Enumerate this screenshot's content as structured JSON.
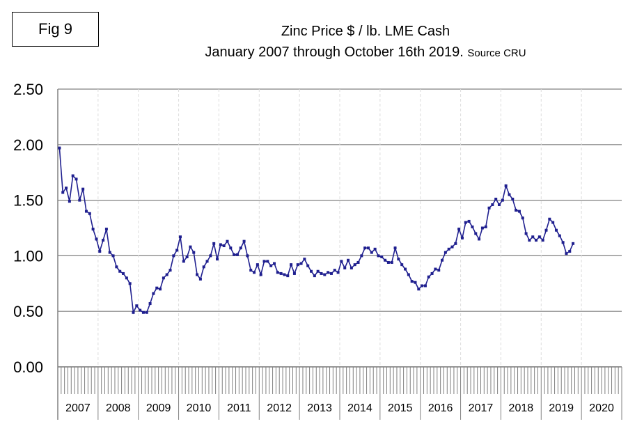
{
  "figure_label": "Fig 9",
  "chart_data": {
    "type": "line",
    "title": "Zinc Price $ / lb. LME Cash",
    "subtitle": "January 2007 through October 16th 2019.",
    "source_note": "Source CRU",
    "xlabel": "",
    "ylabel": "",
    "ylim": [
      0,
      2.5
    ],
    "yticks": [
      "0.00",
      "0.50",
      "1.00",
      "1.50",
      "2.00",
      "2.50"
    ],
    "x_year_labels": [
      "2007",
      "2008",
      "2009",
      "2010",
      "2011",
      "2012",
      "2013",
      "2014",
      "2015",
      "2016",
      "2017",
      "2018",
      "2019",
      "2020"
    ],
    "x_start": "2007-01",
    "x_frequency": "monthly",
    "grid": true,
    "series": [
      {
        "name": "Zinc Price",
        "color": "#1f1f8f",
        "values": [
          1.97,
          1.57,
          1.61,
          1.49,
          1.72,
          1.69,
          1.5,
          1.6,
          1.4,
          1.38,
          1.24,
          1.15,
          1.04,
          1.14,
          1.24,
          1.03,
          1.0,
          0.9,
          0.86,
          0.84,
          0.8,
          0.75,
          0.49,
          0.55,
          0.51,
          0.49,
          0.49,
          0.57,
          0.66,
          0.71,
          0.7,
          0.8,
          0.83,
          0.87,
          1.0,
          1.05,
          1.17,
          0.95,
          0.99,
          1.08,
          1.03,
          0.83,
          0.79,
          0.9,
          0.95,
          1.0,
          1.11,
          0.97,
          1.1,
          1.09,
          1.13,
          1.07,
          1.01,
          1.01,
          1.07,
          1.13,
          1.0,
          0.87,
          0.85,
          0.92,
          0.83,
          0.95,
          0.95,
          0.91,
          0.93,
          0.85,
          0.84,
          0.83,
          0.82,
          0.92,
          0.84,
          0.92,
          0.93,
          0.97,
          0.91,
          0.86,
          0.82,
          0.86,
          0.84,
          0.83,
          0.85,
          0.84,
          0.87,
          0.85,
          0.95,
          0.89,
          0.96,
          0.89,
          0.92,
          0.94,
          1.0,
          1.07,
          1.07,
          1.03,
          1.06,
          1.0,
          0.99,
          0.96,
          0.94,
          0.94,
          1.07,
          0.97,
          0.92,
          0.88,
          0.83,
          0.77,
          0.76,
          0.7,
          0.73,
          0.73,
          0.81,
          0.84,
          0.88,
          0.87,
          0.96,
          1.03,
          1.06,
          1.08,
          1.11,
          1.24,
          1.16,
          1.3,
          1.31,
          1.26,
          1.2,
          1.15,
          1.25,
          1.26,
          1.43,
          1.46,
          1.51,
          1.46,
          1.5,
          1.63,
          1.55,
          1.51,
          1.41,
          1.4,
          1.34,
          1.2,
          1.14,
          1.17,
          1.14,
          1.17,
          1.14,
          1.23,
          1.33,
          1.3,
          1.23,
          1.18,
          1.12,
          1.02,
          1.04,
          1.11
        ]
      }
    ]
  }
}
